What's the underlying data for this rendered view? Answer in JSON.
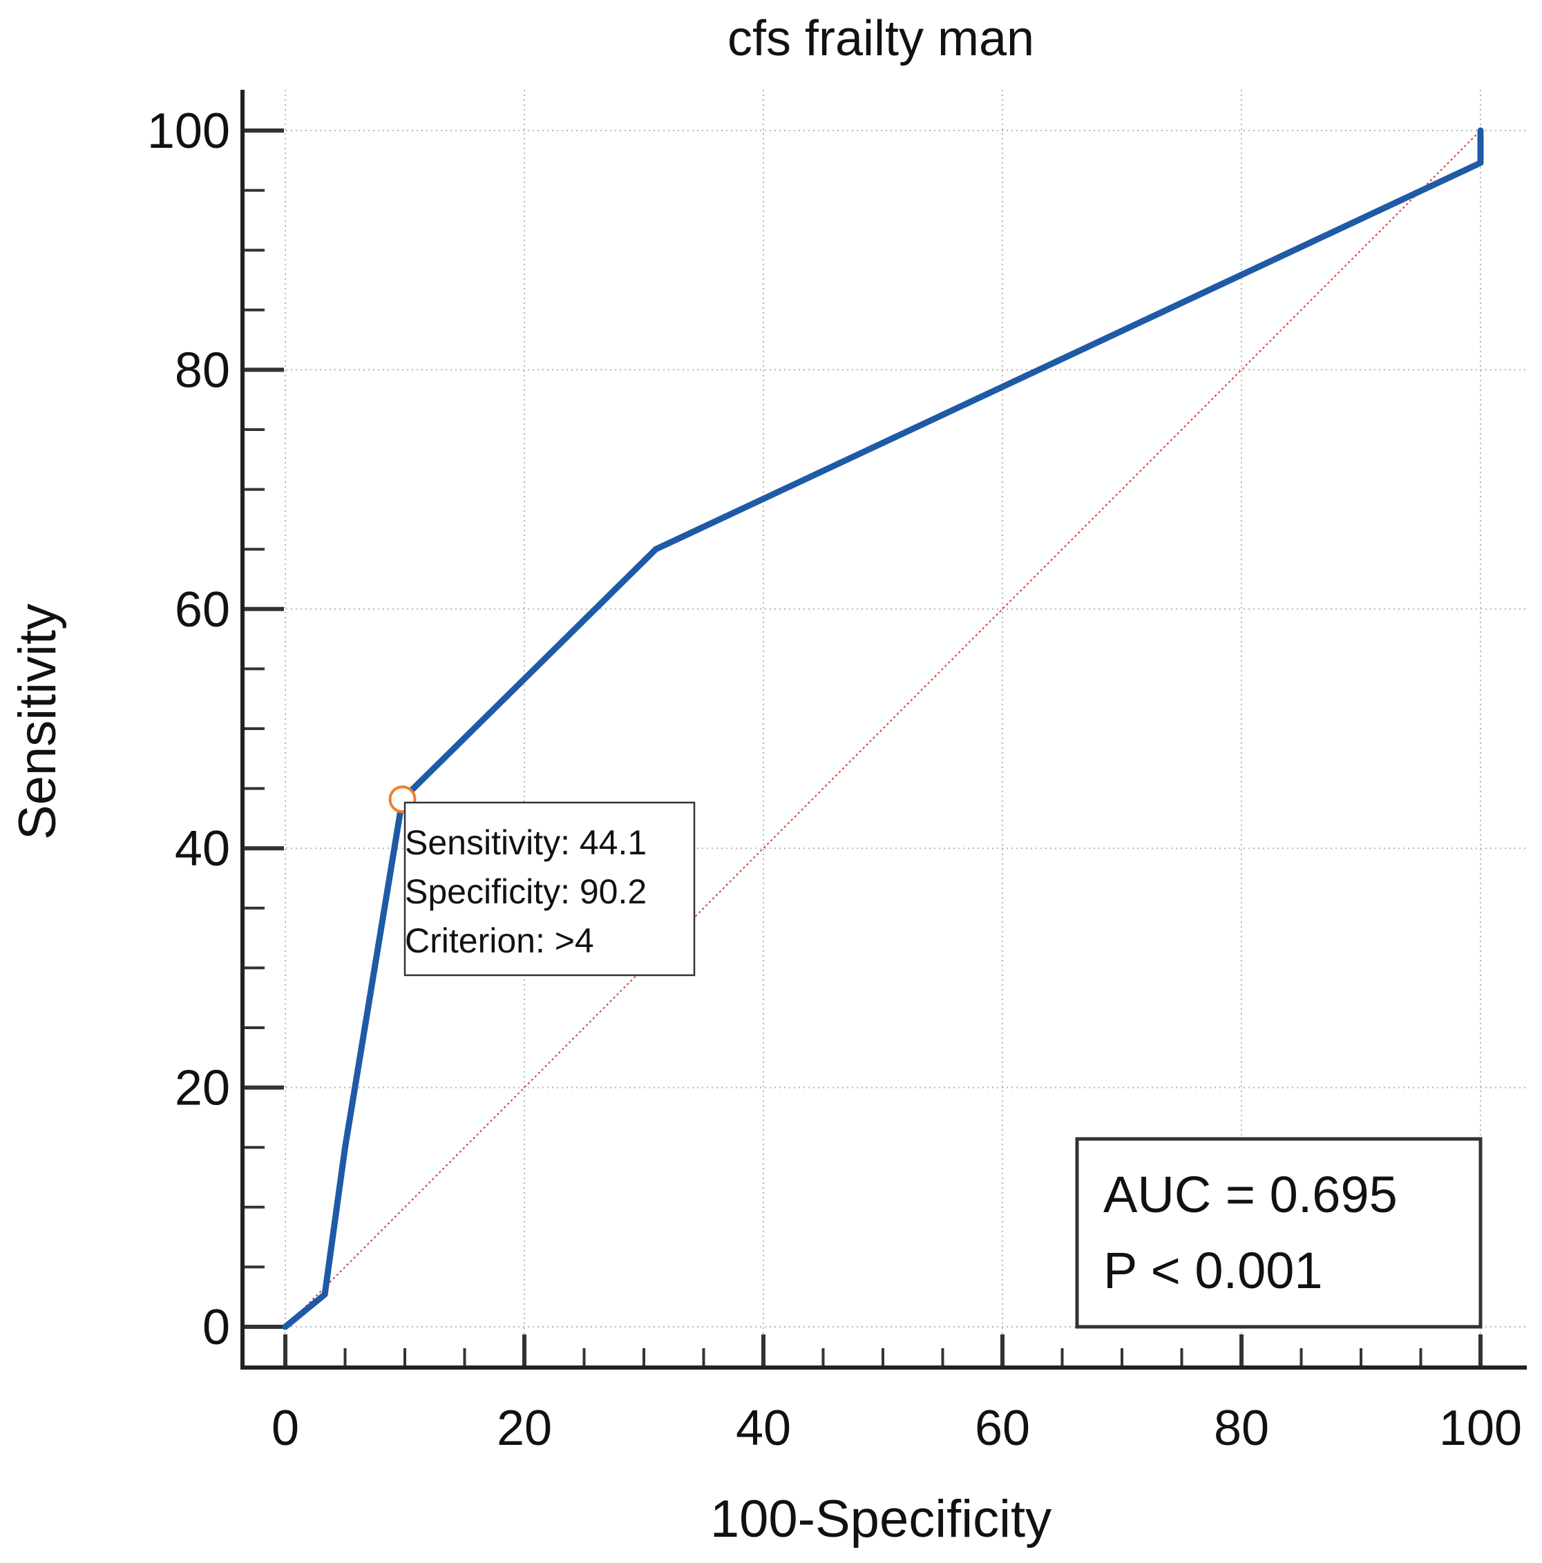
{
  "chart_data": {
    "type": "line",
    "title": "cfs frailty man",
    "xlabel": "100-Specificity",
    "ylabel": "Sensitivity",
    "xlim": [
      0,
      100
    ],
    "ylim": [
      0,
      100
    ],
    "x_ticks": [
      "0",
      "20",
      "40",
      "60",
      "80",
      "100"
    ],
    "y_ticks": [
      "0",
      "20",
      "40",
      "60",
      "80",
      "100"
    ],
    "grid": true,
    "series": [
      {
        "color": "#1f5aa6",
        "points": [
          {
            "x": 0,
            "y": 0
          },
          {
            "x": 3.3,
            "y": 2.7
          },
          {
            "x": 5,
            "y": 15
          },
          {
            "x": 9.8,
            "y": 44.1
          },
          {
            "x": 31,
            "y": 65
          },
          {
            "x": 100,
            "y": 97.3
          },
          {
            "x": 100,
            "y": 100
          }
        ]
      }
    ],
    "reference_line": {
      "color": "#d23c3c",
      "points": [
        {
          "x": 0,
          "y": 0
        },
        {
          "x": 100,
          "y": 100
        }
      ]
    },
    "marker": {
      "x": 9.8,
      "y": 44.1,
      "color": "#f07f2e",
      "lines": [
        "Sensitivity: 44.1",
        "Specificity: 90.2",
        "Criterion: >4"
      ]
    },
    "annotation": {
      "placement": "bottom-right",
      "lines": [
        "AUC = 0.695",
        "P < 0.001"
      ]
    }
  }
}
